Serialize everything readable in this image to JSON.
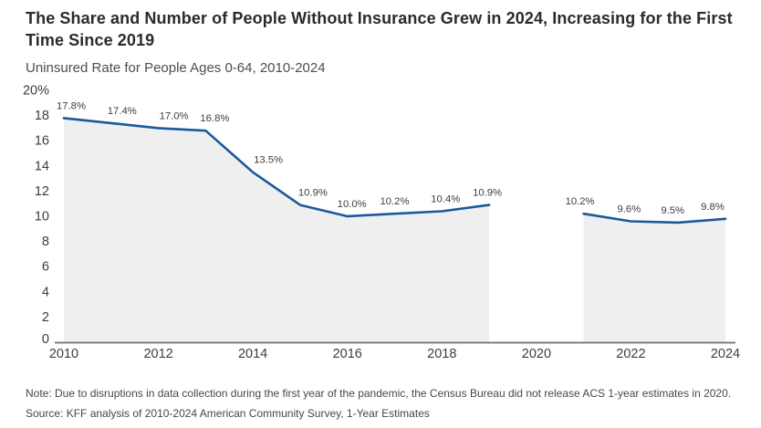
{
  "header": {
    "title": "The Share and Number of People Without Insurance Grew in 2024, Increasing for the First Time Since 2019",
    "subtitle": "Uninsured Rate for People Ages 0-64, 2010-2024"
  },
  "footer": {
    "note": "Note: Due to disruptions in data collection during the first year of the pandemic, the Census Bureau did not release ACS 1-year estimates in 2020.",
    "source": "Source: KFF analysis of 2010-2024 American Community Survey, 1-Year Estimates"
  },
  "chart_data": {
    "type": "area",
    "title": "Uninsured Rate for People Ages 0-64, 2010-2024",
    "x": [
      2010,
      2011,
      2012,
      2013,
      2014,
      2015,
      2016,
      2017,
      2018,
      2019,
      2020,
      2021,
      2022,
      2023,
      2024
    ],
    "series": [
      {
        "name": "Uninsured Rate, Ages 0-64",
        "values": [
          17.8,
          17.4,
          17.0,
          16.8,
          13.5,
          10.9,
          10.0,
          10.2,
          10.4,
          10.9,
          null,
          10.2,
          9.6,
          9.5,
          9.8
        ]
      }
    ],
    "point_labels": [
      "17.8%",
      "17.4%",
      "17.0%",
      "16.8%",
      "13.5%",
      "10.9%",
      "10.0%",
      "10.2%",
      "10.4%",
      "10.9%",
      null,
      "10.2%",
      "9.6%",
      "9.5%",
      "9.8%"
    ],
    "label_dx": [
      8,
      12,
      17,
      10,
      17,
      14,
      5,
      0,
      4,
      -2,
      null,
      -4,
      -2,
      -6,
      -14
    ],
    "ylim": [
      0,
      20
    ],
    "y_ticks": [
      {
        "label": "20%",
        "value": 20
      },
      {
        "label": "18",
        "value": 18
      },
      {
        "label": "16",
        "value": 16
      },
      {
        "label": "14",
        "value": 14
      },
      {
        "label": "12",
        "value": 12
      },
      {
        "label": "10",
        "value": 10
      },
      {
        "label": "8",
        "value": 8
      },
      {
        "label": "6",
        "value": 6
      },
      {
        "label": "4",
        "value": 4
      },
      {
        "label": "2",
        "value": 2
      },
      {
        "label": "0",
        "value": 0
      }
    ],
    "x_ticks": [
      2010,
      2012,
      2014,
      2016,
      2018,
      2020,
      2022,
      2024
    ],
    "grid": false,
    "legend": "none",
    "missing_data_year": 2020,
    "colors": {
      "line": "#1A5A9B",
      "fill": "#EFEFEF",
      "axis": "#6F6F6F",
      "tick_text": "#3D3D3D",
      "label_text": "#3D3D3D"
    }
  }
}
